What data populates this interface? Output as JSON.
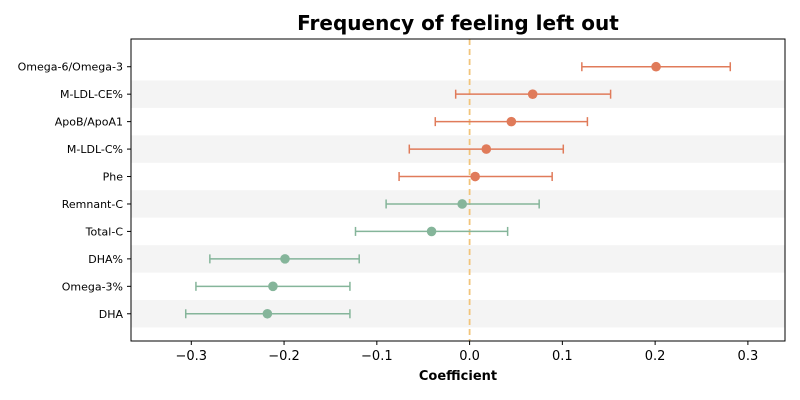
{
  "chart_data": {
    "type": "forest",
    "title": "Frequency of feeling left out",
    "xlabel": "Coefficient",
    "xlim": [
      -0.365,
      0.34
    ],
    "xticks": [
      -0.3,
      -0.2,
      -0.1,
      0.0,
      0.1,
      0.2,
      0.3
    ],
    "xtick_labels": [
      "−0.3",
      "−0.2",
      "−0.1",
      "0.0",
      "0.1",
      "0.2",
      "0.3"
    ],
    "reference_line": 0.0,
    "grid": false,
    "alternating_row_shading": true,
    "colors": {
      "positive": "#e07b5a",
      "negative": "#85b59a",
      "reference": "#f2c47a",
      "row_band": "#f4f4f4"
    },
    "points": [
      {
        "label": "Omega-6/Omega-3",
        "estimate": 0.201,
        "lower": 0.121,
        "upper": 0.281
      },
      {
        "label": "M-LDL-CE%",
        "estimate": 0.068,
        "lower": -0.015,
        "upper": 0.152
      },
      {
        "label": "ApoB/ApoA1",
        "estimate": 0.045,
        "lower": -0.037,
        "upper": 0.127
      },
      {
        "label": "M-LDL-C%",
        "estimate": 0.018,
        "lower": -0.065,
        "upper": 0.101
      },
      {
        "label": "Phe",
        "estimate": 0.006,
        "lower": -0.076,
        "upper": 0.089
      },
      {
        "label": "Remnant-C",
        "estimate": -0.008,
        "lower": -0.09,
        "upper": 0.075
      },
      {
        "label": "Total-C",
        "estimate": -0.041,
        "lower": -0.123,
        "upper": 0.041
      },
      {
        "label": "DHA%",
        "estimate": -0.199,
        "lower": -0.28,
        "upper": -0.119
      },
      {
        "label": "Omega-3%",
        "estimate": -0.212,
        "lower": -0.295,
        "upper": -0.129
      },
      {
        "label": "DHA",
        "estimate": -0.218,
        "lower": -0.306,
        "upper": -0.129
      }
    ]
  }
}
